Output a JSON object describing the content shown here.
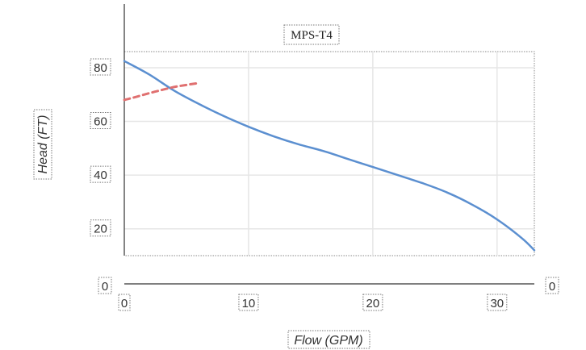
{
  "chart_data": {
    "type": "line",
    "title": "MPS-T4",
    "xlabel": "Flow (GPM)",
    "ylabel": "Head (FT)",
    "xlim": [
      0,
      33
    ],
    "ylim": [
      10,
      86
    ],
    "x_ticks": [
      "0",
      "10",
      "20",
      "30"
    ],
    "y_ticks": [
      "20",
      "40",
      "60",
      "80"
    ],
    "baseline_labels": {
      "left": "0",
      "right": "0"
    },
    "grid": true,
    "series": [
      {
        "style": "solid",
        "color": "#5b8fd0",
        "x": [
          0,
          2,
          4,
          6,
          8,
          10,
          12,
          14,
          16,
          18,
          20,
          22,
          24,
          26,
          28,
          30,
          32,
          33
        ],
        "y": [
          82.5,
          77.5,
          71.5,
          66.5,
          62,
          58,
          54.5,
          51.5,
          49,
          46,
          43,
          40,
          37,
          33.5,
          29,
          23.5,
          16.5,
          12
        ]
      },
      {
        "style": "dashed",
        "color": "#e07070",
        "x": [
          0,
          1,
          2,
          3,
          4,
          5,
          6
        ],
        "y": [
          68,
          69.2,
          70.5,
          71.7,
          72.8,
          73.6,
          74.3
        ]
      }
    ]
  }
}
